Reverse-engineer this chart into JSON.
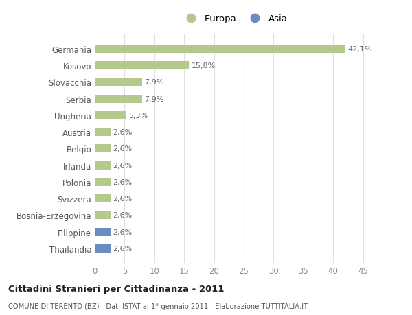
{
  "categories": [
    "Thailandia",
    "Filippine",
    "Bosnia-Erzegovina",
    "Svizzera",
    "Polonia",
    "Irlanda",
    "Belgio",
    "Austria",
    "Ungheria",
    "Serbia",
    "Slovacchia",
    "Kosovo",
    "Germania"
  ],
  "values": [
    2.6,
    2.6,
    2.6,
    2.6,
    2.6,
    2.6,
    2.6,
    2.6,
    5.3,
    7.9,
    7.9,
    15.8,
    42.1
  ],
  "labels": [
    "2,6%",
    "2,6%",
    "2,6%",
    "2,6%",
    "2,6%",
    "2,6%",
    "2,6%",
    "2,6%",
    "5,3%",
    "7,9%",
    "7,9%",
    "15,8%",
    "42,1%"
  ],
  "colors": [
    "#6b8cbf",
    "#6b8cbf",
    "#b5c98e",
    "#b5c98e",
    "#b5c98e",
    "#b5c98e",
    "#b5c98e",
    "#b5c98e",
    "#b5c98e",
    "#b5c98e",
    "#b5c98e",
    "#b5c98e",
    "#b5c98e"
  ],
  "europa_color": "#b5c98e",
  "asia_color": "#6b8cbf",
  "legend_europa": "Europa",
  "legend_asia": "Asia",
  "title": "Cittadini Stranieri per Cittadinanza - 2011",
  "subtitle": "COMUNE DI TERENTO (BZ) - Dati ISTAT al 1° gennaio 2011 - Elaborazione TUTTITALIA.IT",
  "xlim": [
    0,
    47
  ],
  "xticks": [
    0,
    5,
    10,
    15,
    20,
    25,
    30,
    35,
    40,
    45
  ],
  "background_color": "#ffffff",
  "grid_color": "#e0e0e0"
}
